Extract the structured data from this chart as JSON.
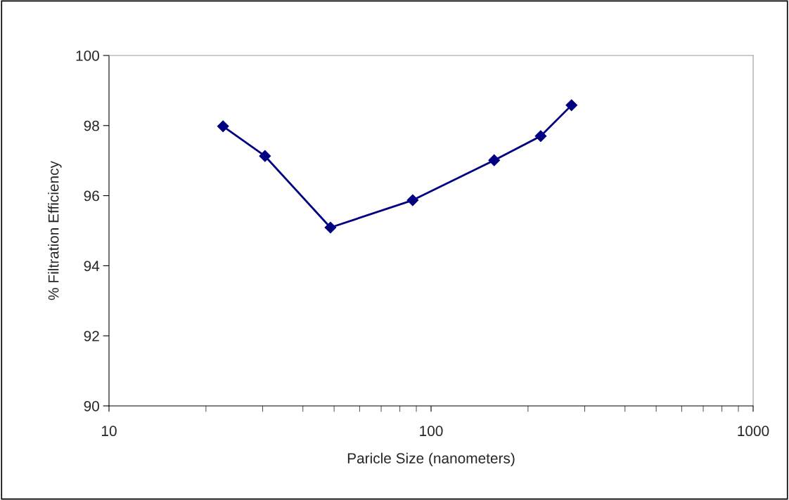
{
  "chart_data": {
    "type": "line",
    "xlabel": "Paricle Size (nanometers)",
    "ylabel": "% Filtration Efficiency",
    "x": [
      22.6,
      30.5,
      48.7,
      87.7,
      157,
      219,
      273
    ],
    "series": [
      {
        "color": "#000080",
        "values": [
          97.98,
          97.13,
          95.09,
          95.87,
          97.01,
          97.7,
          98.58
        ]
      }
    ],
    "log": "x",
    "xlim": [
      10,
      1000
    ],
    "xticks": [
      10,
      100,
      1000
    ],
    "ylim": [
      90,
      100
    ],
    "yticks": [
      90,
      92,
      94,
      96,
      98,
      100
    ],
    "marker": "diamond",
    "line_style": "solid",
    "grid": false,
    "legend": false
  }
}
